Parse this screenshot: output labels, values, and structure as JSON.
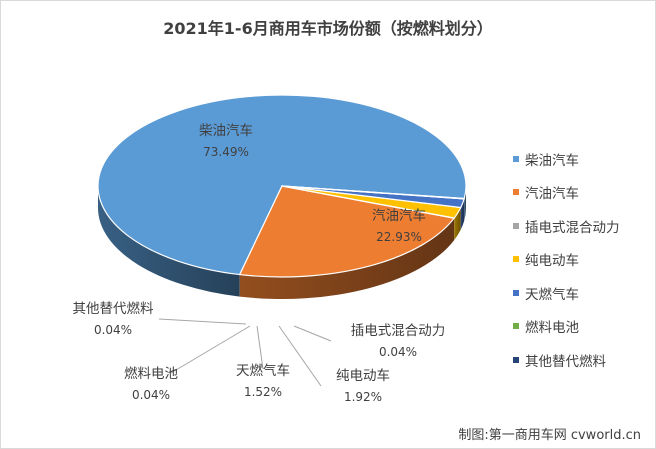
{
  "chart_data": {
    "type": "pie",
    "title": "2021年1-6月商用车市场份额（按燃料划分）",
    "slices": [
      {
        "name": "柴油汽车",
        "value": 73.49,
        "label": "73.49%",
        "color": "#5b9bd5"
      },
      {
        "name": "汽油汽车",
        "value": 22.93,
        "label": "22.93%",
        "color": "#ed7d31"
      },
      {
        "name": "插电式混合动力",
        "value": 0.04,
        "label": "0.04%",
        "color": "#a5a5a5"
      },
      {
        "name": "纯电动车",
        "value": 1.92,
        "label": "1.92%",
        "color": "#ffc000"
      },
      {
        "name": "天燃气车",
        "value": 1.52,
        "label": "1.52%",
        "color": "#4472c4"
      },
      {
        "name": "燃料电池",
        "value": 0.04,
        "label": "0.04%",
        "color": "#70ad47"
      },
      {
        "name": "其他替代燃料",
        "value": 0.04,
        "label": "0.04%",
        "color": "#264478"
      }
    ],
    "legend_position": "right",
    "source": "制图:第一商用车网 cvworld.cn"
  }
}
